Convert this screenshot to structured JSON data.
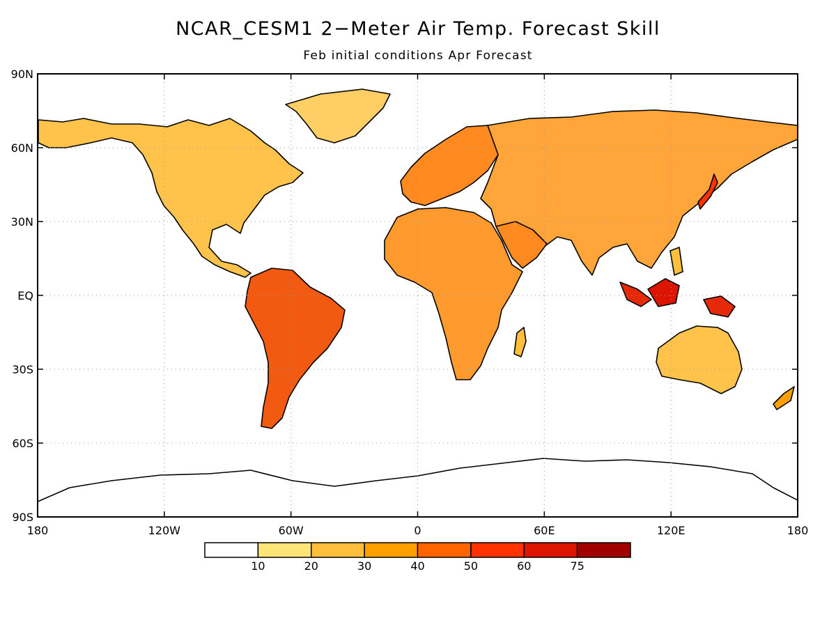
{
  "title": "NCAR_CESM1 2−Meter Air Temp. Forecast Skill",
  "subtitle": "Feb initial conditions  Apr Forecast",
  "map": {
    "lon_range": [
      -180,
      180
    ],
    "lat_range": [
      -90,
      90
    ],
    "grid": "dotted",
    "lat_ticks": [
      {
        "value": 90,
        "label": "90N"
      },
      {
        "value": 60,
        "label": "60N"
      },
      {
        "value": 30,
        "label": "30N"
      },
      {
        "value": 0,
        "label": "EQ"
      },
      {
        "value": -30,
        "label": "30S"
      },
      {
        "value": -60,
        "label": "60S"
      },
      {
        "value": -90,
        "label": "90S"
      }
    ],
    "lon_ticks": [
      {
        "value": -180,
        "label": "180"
      },
      {
        "value": -120,
        "label": "120W"
      },
      {
        "value": -60,
        "label": "60W"
      },
      {
        "value": 0,
        "label": "0"
      },
      {
        "value": 60,
        "label": "60E"
      },
      {
        "value": 120,
        "label": "120E"
      },
      {
        "value": 180,
        "label": "180"
      }
    ]
  },
  "colorbar": {
    "colors": [
      "#ffffff",
      "#ffe478",
      "#ffbf3c",
      "#ffa000",
      "#ff6400",
      "#ff3200",
      "#dc1400",
      "#a00000"
    ],
    "labels": [
      "10",
      "20",
      "30",
      "40",
      "50",
      "60",
      "75"
    ]
  }
}
